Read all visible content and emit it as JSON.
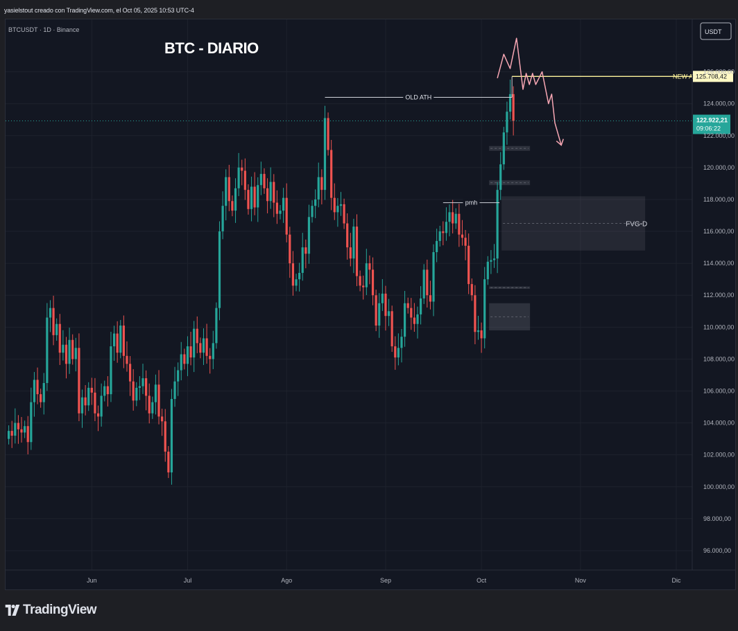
{
  "header": {
    "caption": "yasielstout creado con TradingView.com, el Oct 05, 2025 10:53 UTC-4"
  },
  "chart_title": "BTC - DIARIO",
  "symbol_line": "BTCUSDT · 1D · Binance",
  "currency_button": "USDT",
  "footer": {
    "brand": "TradingView"
  },
  "colors": {
    "up": "#26a69a",
    "down": "#ef5350",
    "background": "#131722",
    "grid": "#1e222d",
    "ath_new": "#fff59d",
    "projection": "#f8a7b4",
    "last_price": "#26a69a"
  },
  "chart_data": {
    "type": "candlestick",
    "title": "BTC - DIARIO",
    "instrument": "BTCUSDT",
    "timeframe": "1D",
    "exchange": "Binance",
    "ylim": [
      95000,
      128500
    ],
    "y_ticks": [
      {
        "value": 96000,
        "label": "96.000,00"
      },
      {
        "value": 98000,
        "label": "98.000,00"
      },
      {
        "value": 100000,
        "label": "100.000,00"
      },
      {
        "value": 102000,
        "label": "102.000,00"
      },
      {
        "value": 104000,
        "label": "104.000,00"
      },
      {
        "value": 106000,
        "label": "106.000,00"
      },
      {
        "value": 108000,
        "label": "108.000,00"
      },
      {
        "value": 110000,
        "label": "110.000,00"
      },
      {
        "value": 112000,
        "label": "112.000,00"
      },
      {
        "value": 114000,
        "label": "114.000,00"
      },
      {
        "value": 116000,
        "label": "116.000,00"
      },
      {
        "value": 118000,
        "label": "118.000,00"
      },
      {
        "value": 120000,
        "label": "120.000,00"
      },
      {
        "value": 122000,
        "label": "122.000,00"
      },
      {
        "value": 124000,
        "label": "124.000,00"
      },
      {
        "value": 126000,
        "label": "126.000,00"
      }
    ],
    "x_start": "2025-05-05",
    "x_end": "2025-12-06",
    "x_ticks": [
      {
        "date": "2025-06-01",
        "label": "Jun"
      },
      {
        "date": "2025-07-01",
        "label": "Jul"
      },
      {
        "date": "2025-08-01",
        "label": "Ago"
      },
      {
        "date": "2025-09-01",
        "label": "Sep"
      },
      {
        "date": "2025-10-01",
        "label": "Oct"
      },
      {
        "date": "2025-11-01",
        "label": "Nov"
      },
      {
        "date": "2025-12-01",
        "label": "Dic"
      }
    ],
    "first_candle_date": "2025-05-06",
    "closes": [
      103500,
      103200,
      104000,
      103600,
      103400,
      103800,
      102800,
      105300,
      106700,
      105800,
      105300,
      106500,
      110600,
      111200,
      109500,
      110200,
      108400,
      108900,
      107700,
      109200,
      108000,
      108700,
      104600,
      105600,
      105100,
      106200,
      105900,
      104600,
      104400,
      105700,
      106300,
      105800,
      108800,
      109600,
      108400,
      110100,
      108200,
      107700,
      106600,
      105400,
      106200,
      106300,
      106800,
      105700,
      104600,
      105300,
      106400,
      104400,
      104100,
      102200,
      100900,
      105500,
      106600,
      107300,
      108300,
      107700,
      108800,
      108100,
      109900,
      109000,
      108400,
      109300,
      108200,
      108000,
      109000,
      111200,
      116000,
      117600,
      119400,
      117900,
      117300,
      118700,
      120000,
      119800,
      118600,
      117400,
      118800,
      117500,
      118900,
      119600,
      118700,
      117900,
      119100,
      117800,
      117100,
      117300,
      118100,
      115800,
      114000,
      112600,
      113000,
      113400,
      115000,
      114600,
      116900,
      117600,
      118000,
      119400,
      118600,
      123100,
      121100,
      118100,
      117200,
      117600,
      117700,
      116500,
      115000,
      114300,
      116300,
      113200,
      112600,
      112500,
      114000,
      113600,
      112000,
      110100,
      111500,
      112100,
      110700,
      111000,
      108800,
      108100,
      108700,
      109400,
      111500,
      111200,
      110600,
      110200,
      110800,
      111800,
      113600,
      112000,
      111600,
      114700,
      115400,
      116000,
      115900,
      116600,
      117200,
      116500,
      117100,
      115800,
      115600,
      115100,
      112700,
      112000,
      109700,
      109800,
      109300,
      113000,
      114100,
      114200,
      114300,
      118600,
      120200,
      122200,
      123500,
      124600,
      122922
    ],
    "last_price": {
      "value": 122922.21,
      "label": "122.922,21",
      "countdown": "09:06:22"
    },
    "annotations": [
      {
        "kind": "hline",
        "label": "NEW ATH",
        "value": 125708.42,
        "price_label": "125.708,42"
      },
      {
        "kind": "level",
        "label": "OLD ATH",
        "value": 124400
      },
      {
        "kind": "level",
        "label": "pmh",
        "value": 117800
      },
      {
        "kind": "zone",
        "label": "FVG-D",
        "low": 114800,
        "high": 118200
      },
      {
        "kind": "zone",
        "label": "",
        "low": 109800,
        "high": 111500
      },
      {
        "kind": "zone",
        "label": "",
        "low": 118900,
        "high": 119200
      },
      {
        "kind": "zone",
        "label": "",
        "low": 121050,
        "high": 121350
      },
      {
        "kind": "zone",
        "label": "",
        "low": 112400,
        "high": 112550
      },
      {
        "kind": "projection",
        "label": "",
        "points": [
          {
            "date": "2025-10-06",
            "value": 125600
          },
          {
            "date": "2025-10-08",
            "value": 127100
          },
          {
            "date": "2025-10-10",
            "value": 126200
          },
          {
            "date": "2025-10-12",
            "value": 128100
          },
          {
            "date": "2025-10-14",
            "value": 124900
          },
          {
            "date": "2025-10-15",
            "value": 125900
          },
          {
            "date": "2025-10-16",
            "value": 125200
          },
          {
            "date": "2025-10-17",
            "value": 125900
          },
          {
            "date": "2025-10-18",
            "value": 125200
          },
          {
            "date": "2025-10-20",
            "value": 126000
          },
          {
            "date": "2025-10-21",
            "value": 125000
          },
          {
            "date": "2025-10-22",
            "value": 124000
          },
          {
            "date": "2025-10-23",
            "value": 124600
          },
          {
            "date": "2025-10-24",
            "value": 122800
          },
          {
            "date": "2025-10-26",
            "value": 121400
          }
        ]
      }
    ]
  }
}
